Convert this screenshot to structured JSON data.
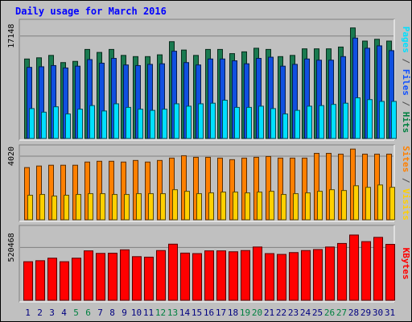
{
  "chart_data": {
    "type": "bar",
    "title": "Daily usage for March 2016",
    "categories": [
      "1",
      "2",
      "3",
      "4",
      "5",
      "6",
      "7",
      "8",
      "9",
      "10",
      "11",
      "12",
      "13",
      "14",
      "15",
      "16",
      "17",
      "18",
      "19",
      "20",
      "21",
      "22",
      "23",
      "24",
      "25",
      "26",
      "27",
      "28",
      "29",
      "30",
      "31"
    ],
    "weekend_days": [
      "5",
      "6",
      "12",
      "13",
      "19",
      "20",
      "26",
      "27"
    ],
    "panels": [
      {
        "id": "hits-files-pages",
        "ylabel_parts": [
          {
            "text": "Pages",
            "color": "#00e0ff"
          },
          {
            "text": " / ",
            "color": "#505050"
          },
          {
            "text": "Files",
            "color": "#1050ff"
          },
          {
            "text": " / ",
            "color": "#505050"
          },
          {
            "text": "Hits",
            "color": "#008040"
          }
        ],
        "ytick_label": "17148",
        "ymax": 17148,
        "ylim": [
          0,
          19400
        ],
        "series": [
          {
            "name": "Hits",
            "color": "#1a7a50",
            "values": [
              13300,
              13500,
              13900,
              12700,
              12900,
              14900,
              14400,
              14900,
              13900,
              13700,
              13700,
              14000,
              16200,
              14800,
              13900,
              14900,
              14900,
              14200,
              14500,
              15100,
              14900,
              13700,
              13900,
              15000,
              15000,
              15000,
              15300,
              18500,
              16300,
              16600,
              16300
            ]
          },
          {
            "name": "Files",
            "color": "#1050e0",
            "values": [
              11900,
              12000,
              12200,
              11800,
              12100,
              13200,
              12600,
              13400,
              12300,
              12200,
              12400,
              12500,
              14600,
              12700,
              12300,
              13300,
              13300,
              13000,
              12500,
              13400,
              13600,
              12100,
              12400,
              13300,
              13100,
              13100,
              13700,
              16800,
              15100,
              15500,
              14700
            ]
          },
          {
            "name": "Pages",
            "color": "#00e0ff",
            "values": [
              5000,
              4400,
              5300,
              4100,
              4900,
              5500,
              4600,
              5800,
              5200,
              4900,
              4700,
              4900,
              5800,
              5400,
              5800,
              5900,
              6400,
              5200,
              5200,
              5400,
              5000,
              4100,
              4700,
              5400,
              5500,
              5700,
              5900,
              6800,
              6500,
              6200,
              6200
            ]
          }
        ]
      },
      {
        "id": "visits-sites",
        "ylabel_parts": [
          {
            "text": "Sites",
            "color": "#ff8000"
          },
          {
            "text": " / ",
            "color": "#505050"
          },
          {
            "text": "Visits",
            "color": "#ffd000"
          }
        ],
        "ytick_label": "4020",
        "ymax": 4020,
        "ylim": [
          0,
          4530
        ],
        "series": [
          {
            "name": "Visits",
            "color": "#ff8000",
            "values": [
              3300,
              3400,
              3450,
              3450,
              3450,
              3650,
              3700,
              3700,
              3650,
              3750,
              3650,
              3750,
              3900,
              4050,
              3950,
              3950,
              3900,
              3800,
              3900,
              3950,
              4000,
              3900,
              3900,
              3900,
              4200,
              4200,
              4150,
              4470,
              4150,
              4150,
              4150
            ]
          },
          {
            "name": "Sites",
            "color": "#ffd000",
            "values": [
              1550,
              1600,
              1500,
              1550,
              1600,
              1650,
              1650,
              1600,
              1600,
              1650,
              1650,
              1650,
              1900,
              1800,
              1650,
              1700,
              1750,
              1750,
              1700,
              1750,
              1800,
              1600,
              1650,
              1700,
              1800,
              1900,
              1850,
              2150,
              2050,
              2200,
              2050
            ]
          }
        ]
      },
      {
        "id": "kbytes",
        "ylabel_parts": [
          {
            "text": "KBytes",
            "color": "#ff0000"
          }
        ],
        "ytick_label": "520468",
        "ymax": 520468,
        "ylim": [
          0,
          706000
        ],
        "series": [
          {
            "name": "KBytes",
            "color": "#ff0000",
            "values": [
              380000,
              390000,
              415000,
              380000,
              415000,
              487000,
              462000,
              464000,
              497000,
              430000,
              425000,
              490000,
              553000,
              465000,
              460000,
              487000,
              487000,
              478000,
              490000,
              525000,
              460000,
              452000,
              470000,
              490000,
              500000,
              525000,
              560000,
              643000,
              578000,
              620000,
              551000
            ]
          }
        ]
      }
    ],
    "colors": {
      "background": "#c0c0c0",
      "plot_background": "#c0c0c0",
      "title": "#0000ff",
      "day_label": "#000080",
      "weekend_label": "#008040"
    }
  }
}
